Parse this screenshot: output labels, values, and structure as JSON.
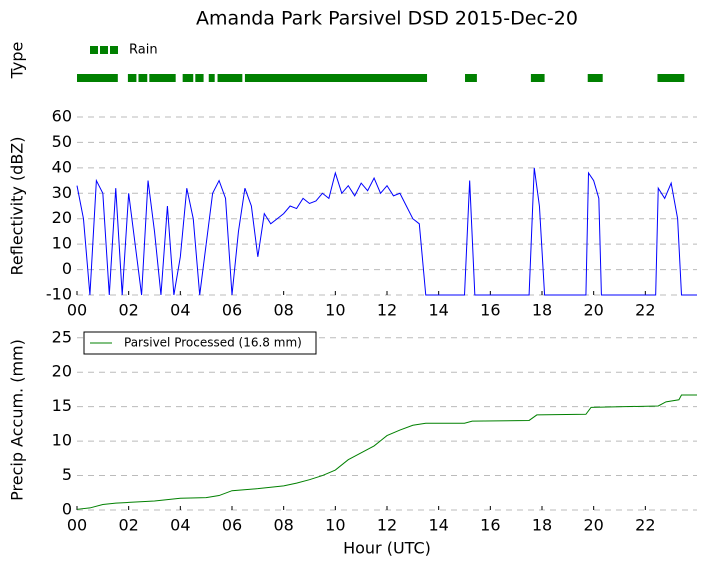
{
  "chart_data": [
    {
      "type": "timeline",
      "title": "Amanda Park Parsivel DSD 2015-Dec-20",
      "ylabel": "Type",
      "xlim": [
        0,
        24
      ],
      "series": [
        {
          "name": "Rain",
          "color": "#008000",
          "intervals": [
            [
              0,
              1.58
            ],
            [
              1.97,
              2.3
            ],
            [
              2.38,
              2.72
            ],
            [
              2.8,
              3.82
            ],
            [
              4.09,
              4.5
            ],
            [
              4.58,
              4.9
            ],
            [
              5.1,
              5.33
            ],
            [
              5.44,
              6.4
            ],
            [
              6.5,
              13.55
            ],
            [
              15.02,
              15.48
            ],
            [
              17.57,
              18.1
            ],
            [
              19.77,
              20.35
            ],
            [
              22.47,
              23.51
            ]
          ]
        }
      ]
    },
    {
      "type": "line",
      "ylabel": "Reflectivity (dBZ)",
      "xlim": [
        0,
        24
      ],
      "ylim": [
        -10,
        60
      ],
      "grid": true,
      "yticks": [
        -10,
        0,
        10,
        20,
        30,
        40,
        50,
        60
      ],
      "xticks": [
        {
          "value": 0,
          "label": "00"
        },
        {
          "value": 2,
          "label": "02"
        },
        {
          "value": 4,
          "label": "04"
        },
        {
          "value": 6,
          "label": "06"
        },
        {
          "value": 8,
          "label": "08"
        },
        {
          "value": 10,
          "label": "10"
        },
        {
          "value": 12,
          "label": "12"
        },
        {
          "value": 14,
          "label": "14"
        },
        {
          "value": 16,
          "label": "16"
        },
        {
          "value": 18,
          "label": "18"
        },
        {
          "value": 20,
          "label": "20"
        },
        {
          "value": 22,
          "label": "22"
        }
      ],
      "x": [
        0,
        0.25,
        0.5,
        0.75,
        1,
        1.25,
        1.5,
        1.75,
        2,
        2.25,
        2.5,
        2.75,
        3,
        3.25,
        3.5,
        3.75,
        4,
        4.25,
        4.5,
        4.75,
        5,
        5.25,
        5.5,
        5.75,
        6,
        6.25,
        6.5,
        6.75,
        7,
        7.25,
        7.5,
        7.75,
        8,
        8.25,
        8.5,
        8.75,
        9,
        9.25,
        9.5,
        9.75,
        10,
        10.25,
        10.5,
        10.75,
        11,
        11.25,
        11.5,
        11.75,
        12,
        12.25,
        12.5,
        12.75,
        13,
        13.25,
        13.5,
        15,
        15.2,
        15.4,
        17.5,
        17.7,
        17.9,
        18.1,
        19.7,
        19.8,
        20,
        20.2,
        20.3,
        22.4,
        22.5,
        22.75,
        23,
        23.25,
        23.4,
        24
      ],
      "series": [
        {
          "name": "Reflectivity",
          "color": "#0000ff",
          "values": [
            33,
            20,
            -10,
            35,
            30,
            -10,
            32,
            -10,
            30,
            10,
            -10,
            35,
            15,
            -10,
            25,
            -10,
            5,
            32,
            20,
            -10,
            10,
            30,
            35,
            28,
            -10,
            15,
            32,
            25,
            5,
            22,
            18,
            20,
            22,
            25,
            24,
            28,
            26,
            27,
            30,
            28,
            38,
            30,
            33,
            29,
            34,
            31,
            36,
            30,
            33,
            29,
            30,
            25,
            20,
            18,
            -10,
            -10,
            35,
            -10,
            -10,
            40,
            25,
            -10,
            -10,
            38,
            35,
            28,
            -10,
            -10,
            32,
            28,
            34,
            20,
            -10,
            -10
          ]
        }
      ]
    },
    {
      "type": "line",
      "ylabel": "Precip Accum. (mm)",
      "xlabel": "Hour (UTC)",
      "xlim": [
        0,
        24
      ],
      "ylim": [
        0,
        27
      ],
      "grid": true,
      "legend": "upper left",
      "yticks": [
        0,
        5,
        10,
        15,
        20,
        25
      ],
      "xticks": [
        {
          "value": 0,
          "label": "00"
        },
        {
          "value": 2,
          "label": "02"
        },
        {
          "value": 4,
          "label": "04"
        },
        {
          "value": 6,
          "label": "06"
        },
        {
          "value": 8,
          "label": "08"
        },
        {
          "value": 10,
          "label": "10"
        },
        {
          "value": 12,
          "label": "12"
        },
        {
          "value": 14,
          "label": "14"
        },
        {
          "value": 16,
          "label": "16"
        },
        {
          "value": 18,
          "label": "18"
        },
        {
          "value": 20,
          "label": "20"
        },
        {
          "value": 22,
          "label": "22"
        }
      ],
      "x": [
        0,
        0.5,
        1,
        1.5,
        2,
        3,
        4,
        5,
        5.5,
        6,
        7,
        8,
        8.5,
        9,
        9.5,
        10,
        10.5,
        11,
        11.5,
        12,
        12.5,
        13,
        13.5,
        14,
        15,
        15.3,
        17.5,
        17.8,
        19.7,
        19.9,
        22.5,
        22.8,
        23.3,
        23.4,
        24
      ],
      "series": [
        {
          "name": "Parsivel Processed (16.8 mm)",
          "color": "#008000",
          "values": [
            0.1,
            0.3,
            0.8,
            1.0,
            1.1,
            1.3,
            1.7,
            1.8,
            2.1,
            2.8,
            3.1,
            3.5,
            3.9,
            4.4,
            5.0,
            5.8,
            7.3,
            8.3,
            9.3,
            10.8,
            11.6,
            12.3,
            12.6,
            12.6,
            12.6,
            12.9,
            13.0,
            13.8,
            13.9,
            14.9,
            15.1,
            15.7,
            16.0,
            16.7,
            16.7
          ]
        }
      ]
    }
  ]
}
